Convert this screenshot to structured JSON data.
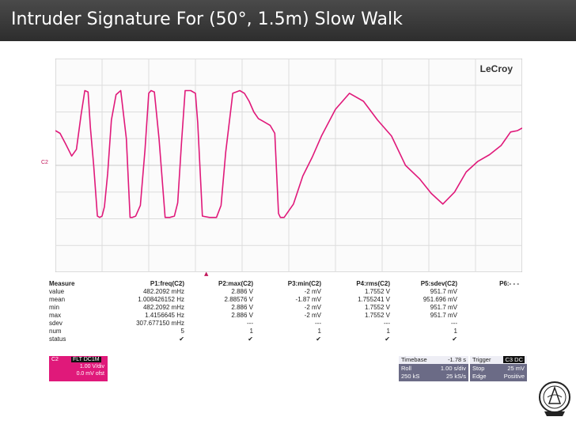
{
  "slide": {
    "title": "Intruder Signature For (50°, 1.5m) Slow Walk"
  },
  "scope": {
    "brand": "LeCroy",
    "channel_label": "C2",
    "trace_color": "#e0197a",
    "measure": {
      "headers": [
        "Measure",
        "P1:freq(C2)",
        "P2:max(C2)",
        "P3:min(C2)",
        "P4:rms(C2)",
        "P5:sdev(C2)",
        "P6:- - -"
      ],
      "rows": [
        [
          "value",
          "482.2092 mHz",
          "2.886 V",
          "-2 mV",
          "1.7552 V",
          "951.7 mV",
          ""
        ],
        [
          "mean",
          "1.008426152 Hz",
          "2.88576 V",
          "-1.87 mV",
          "1.755241 V",
          "951.696 mV",
          ""
        ],
        [
          "min",
          "482.2092 mHz",
          "2.886 V",
          "-2 mV",
          "1.7552 V",
          "951.7 mV",
          ""
        ],
        [
          "max",
          "1.4156645 Hz",
          "2.886 V",
          "-2 mV",
          "1.7552 V",
          "951.7 mV",
          ""
        ],
        [
          "sdev",
          "307.677150 mHz",
          "---",
          "---",
          "---",
          "---",
          ""
        ],
        [
          "num",
          "5",
          "1",
          "1",
          "1",
          "1",
          ""
        ],
        [
          "status",
          "✔",
          "✔",
          "✔",
          "✔",
          "✔",
          ""
        ]
      ]
    },
    "channel_box": {
      "tag": "C2",
      "badge": "FLT DC1M",
      "volts_div": "1.00 V/div",
      "offset": "0.0 mV ofst"
    },
    "timebase": {
      "label": "Timebase",
      "value": "-1.78 s",
      "mode": "Roll",
      "per_div": "1.00 s/div",
      "samples": "250 kS",
      "rate": "25 kS/s"
    },
    "trigger": {
      "label": "Trigger",
      "badge": "C3 DC",
      "mode": "Stop",
      "level": "25 mV",
      "type": "Edge",
      "slope": "Positive"
    }
  },
  "chart_data": {
    "type": "line",
    "title": "",
    "xlabel": "",
    "ylabel": "",
    "xlim": [
      0,
      10
    ],
    "ylim": [
      -4,
      4
    ],
    "grid": true,
    "series": [
      {
        "color": "#e0197a",
        "x": [
          0.0,
          0.1,
          0.22,
          0.35,
          0.45,
          0.55,
          0.63,
          0.7,
          0.75,
          0.82,
          0.9,
          0.95,
          1.0,
          1.05,
          1.12,
          1.2,
          1.3,
          1.4,
          1.52,
          1.6,
          1.65,
          1.72,
          1.82,
          1.92,
          2.0,
          2.05,
          2.12,
          2.22,
          2.35,
          2.45,
          2.55,
          2.62,
          2.7,
          2.78,
          2.9,
          3.0,
          3.05,
          3.15,
          3.3,
          3.45,
          3.55,
          3.65,
          3.8,
          3.95,
          4.05,
          4.15,
          4.25,
          4.35,
          4.45,
          4.6,
          4.7,
          4.78,
          4.82,
          4.9,
          5.1,
          5.3,
          5.5,
          5.7,
          6.0,
          6.3,
          6.6,
          6.9,
          7.2,
          7.5,
          7.8,
          8.05,
          8.3,
          8.55,
          8.8,
          9.05,
          9.3,
          9.55,
          9.75,
          9.9,
          10.0
        ],
        "y": [
          1.3,
          1.2,
          0.8,
          0.35,
          0.6,
          1.9,
          2.8,
          2.75,
          1.4,
          0.0,
          -1.9,
          -1.95,
          -1.9,
          -1.55,
          -0.3,
          1.7,
          2.65,
          2.8,
          1.0,
          -1.95,
          -1.95,
          -1.9,
          -1.5,
          0.6,
          2.7,
          2.8,
          2.75,
          1.0,
          -1.95,
          -1.95,
          -1.9,
          -1.4,
          0.8,
          2.8,
          2.8,
          2.7,
          1.6,
          -1.9,
          -1.95,
          -1.95,
          -1.5,
          0.5,
          2.7,
          2.8,
          2.7,
          2.4,
          2.0,
          1.75,
          1.65,
          1.5,
          1.2,
          -1.8,
          -1.95,
          -1.95,
          -1.45,
          -0.4,
          0.3,
          1.1,
          2.1,
          2.7,
          2.4,
          1.7,
          1.1,
          0.0,
          -0.5,
          -1.05,
          -1.45,
          -1.0,
          -0.25,
          0.15,
          0.4,
          0.75,
          1.25,
          1.3,
          1.4
        ]
      }
    ]
  }
}
